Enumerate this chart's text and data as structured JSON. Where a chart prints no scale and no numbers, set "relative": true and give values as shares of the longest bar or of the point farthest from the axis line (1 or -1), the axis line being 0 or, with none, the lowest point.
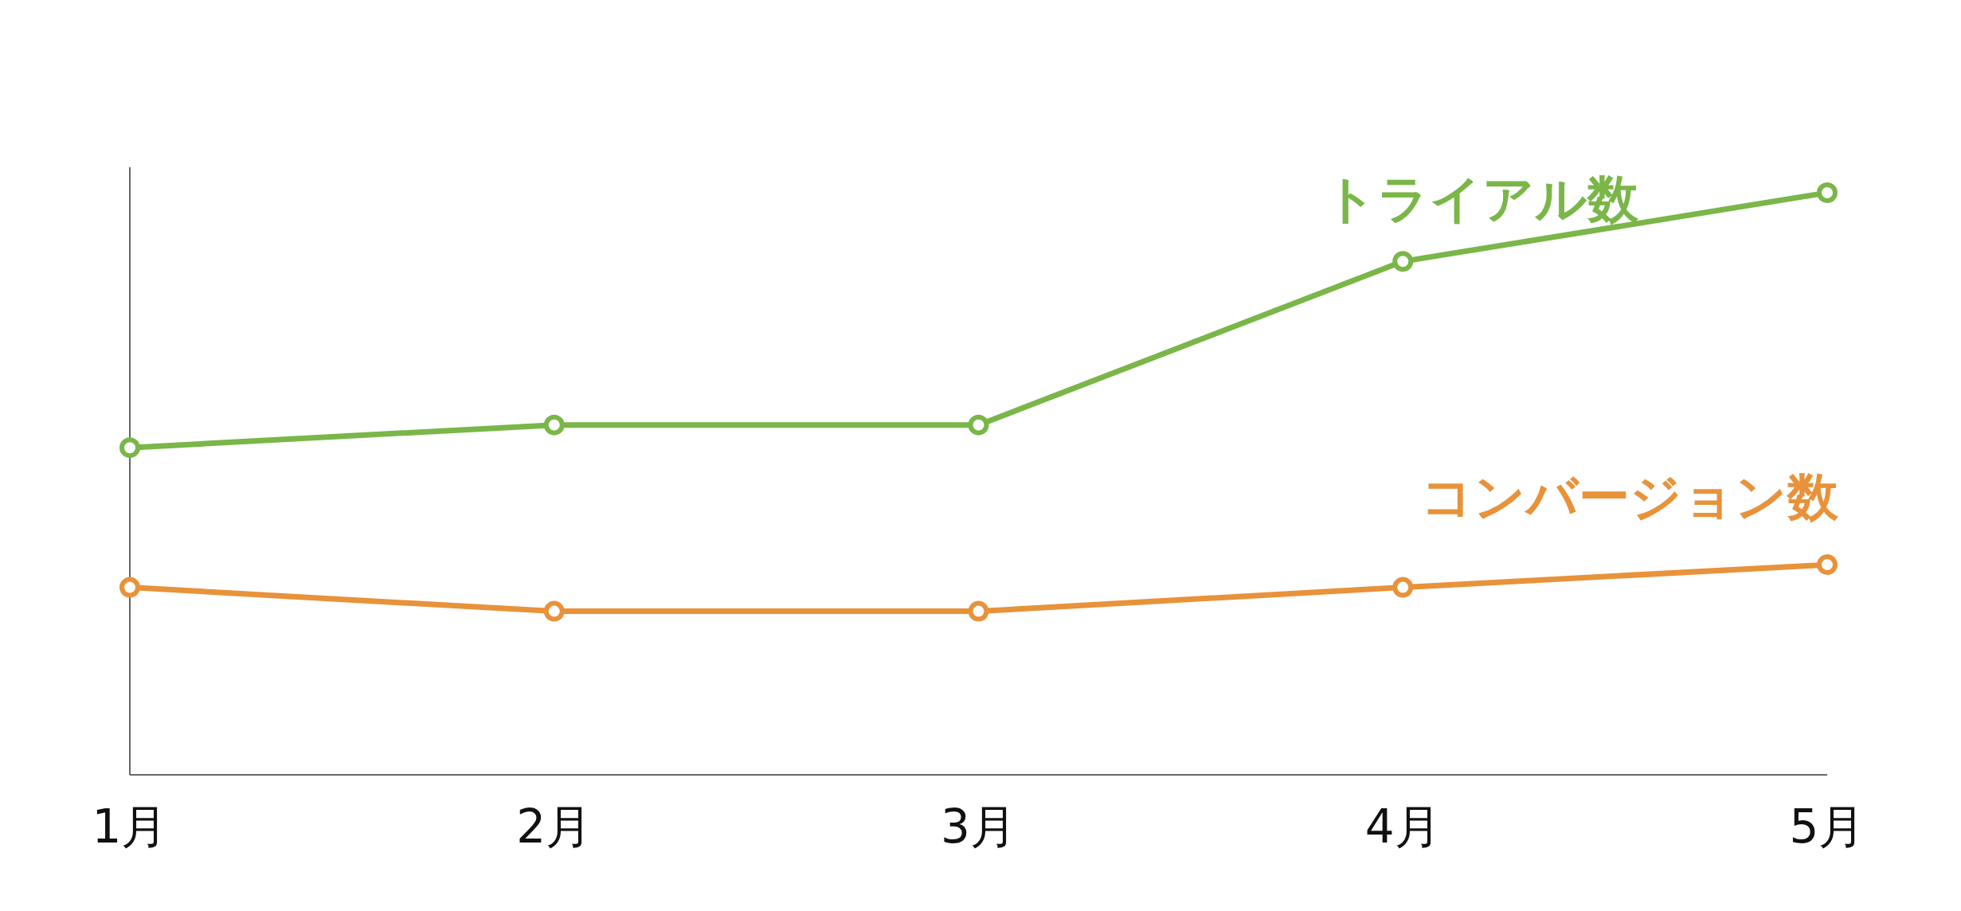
{
  "chart_data": {
    "type": "line",
    "relative": true,
    "marker": "circle",
    "line_style": "solid",
    "categories": [
      "1月",
      "2月",
      "3月",
      "4月",
      "5月"
    ],
    "series": [
      {
        "name": "トライアル数",
        "color": "#7ab648",
        "values": [
          0.562,
          0.601,
          0.601,
          0.882,
          1
        ]
      },
      {
        "name": "コンバージョン数",
        "color": "#e8923a",
        "values": [
          0.322,
          0.281,
          0.281,
          0.322,
          0.361
        ]
      }
    ]
  }
}
